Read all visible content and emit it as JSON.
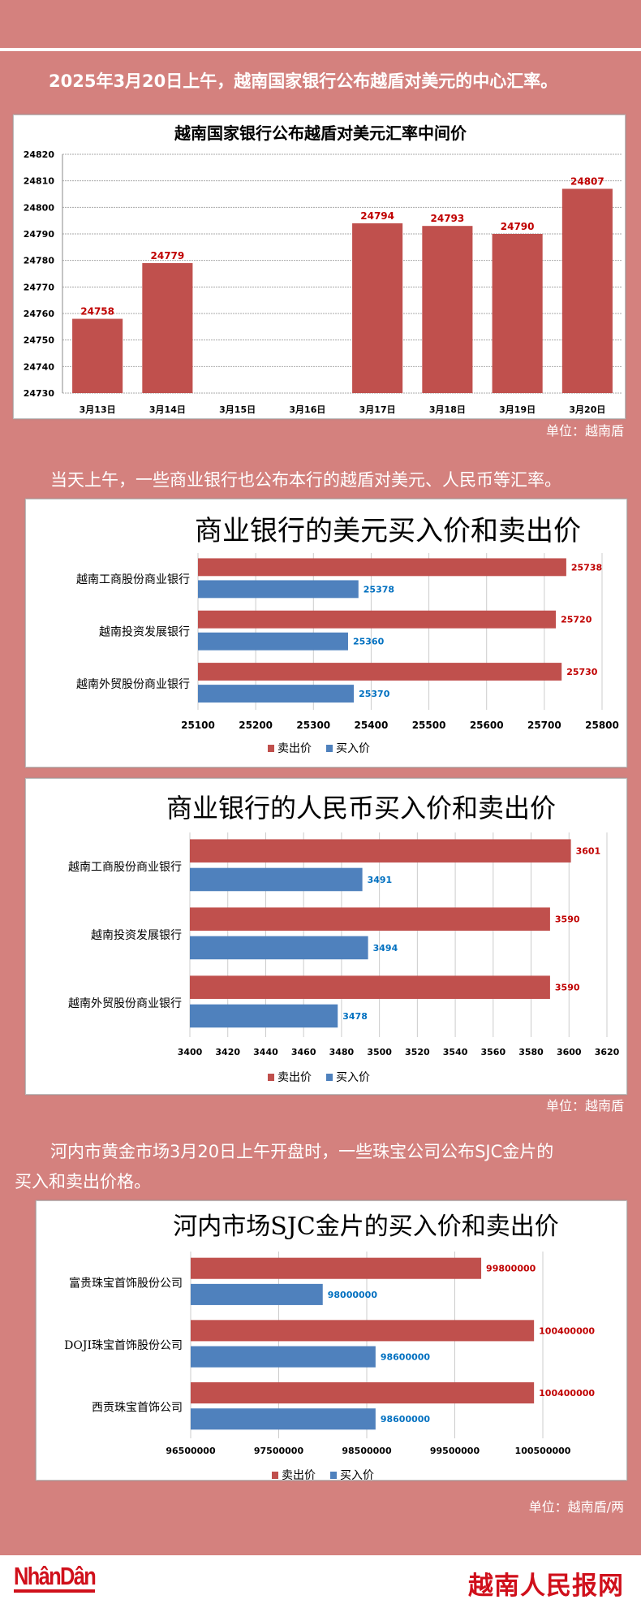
{
  "intro_1": "2025年3月20日上午，越南国家银行公布越盾对美元的中心汇率。",
  "intro_2": "当天上午，一些商业银行也公布本行的越盾对美元、人民币等汇率。",
  "intro_3_line1": "河内市黄金市场3月20日上午开盘时，一些珠宝公司公布SJC金片的",
  "intro_3_line2": "买入和卖出价格。",
  "unit_1": "单位：越南盾",
  "unit_2": "单位：越南盾",
  "unit_3": "单位：越南盾/两",
  "footer": {
    "logo_left": "NhânDân",
    "logo_right": "越南人民报网"
  },
  "colors": {
    "background": "#d4817e",
    "sell": "#c0504d",
    "buy": "#4f81bd",
    "sell_label": "#c00000",
    "buy_label": "#0070c0"
  },
  "chart_data": [
    {
      "type": "bar",
      "title": "越南国家银行公布越盾对美元汇率中间价",
      "categories": [
        "3月13日",
        "3月14日",
        "3月15日",
        "3月16日",
        "3月17日",
        "3月18日",
        "3月19日",
        "3月20日"
      ],
      "values": [
        24758,
        24779,
        null,
        null,
        24794,
        24793,
        24790,
        24807
      ],
      "ylim": [
        24730,
        24820
      ],
      "yticks": [
        24730,
        24740,
        24750,
        24760,
        24770,
        24780,
        24790,
        24800,
        24810,
        24820
      ],
      "grid": true
    },
    {
      "type": "bar",
      "orientation": "horizontal",
      "title": "商业银行的美元买入价和卖出价",
      "categories": [
        "越南工商股份商业银行",
        "越南投资发展银行",
        "越南外贸股份商业银行"
      ],
      "series": [
        {
          "name": "卖出价",
          "values": [
            25738,
            25720,
            25730
          ]
        },
        {
          "name": "买入价",
          "values": [
            25378,
            25360,
            25370
          ]
        }
      ],
      "xlim": [
        25100,
        25800
      ],
      "xticks": [
        25100,
        25200,
        25300,
        25400,
        25500,
        25600,
        25700,
        25800
      ],
      "legend": "bottom",
      "grid": true
    },
    {
      "type": "bar",
      "orientation": "horizontal",
      "title": "商业银行的人民币买入价和卖出价",
      "categories": [
        "越南工商股份商业银行",
        "越南投资发展银行",
        "越南外贸股份商业银行"
      ],
      "series": [
        {
          "name": "卖出价",
          "values": [
            3601,
            3590,
            3590
          ]
        },
        {
          "name": "买入价",
          "values": [
            3491,
            3494,
            3478
          ]
        }
      ],
      "xlim": [
        3400,
        3620
      ],
      "xticks": [
        3400,
        3420,
        3440,
        3460,
        3480,
        3500,
        3520,
        3540,
        3560,
        3580,
        3600,
        3620
      ],
      "legend": "bottom",
      "grid": true
    },
    {
      "type": "bar",
      "orientation": "horizontal",
      "title": "河内市场SJC金片的买入价和卖出价",
      "categories": [
        "富贵珠宝首饰股份公司",
        "DOJI珠宝首饰股份公司",
        "西贡珠宝首饰公司"
      ],
      "series": [
        {
          "name": "卖出价",
          "values": [
            99800000,
            100400000,
            100400000
          ]
        },
        {
          "name": "买入价",
          "values": [
            98000000,
            98600000,
            98600000
          ]
        }
      ],
      "xlim": [
        96500000,
        100500000
      ],
      "xticks": [
        96500000,
        97500000,
        98500000,
        99500000,
        100500000
      ],
      "legend": "bottom",
      "grid": true
    }
  ]
}
